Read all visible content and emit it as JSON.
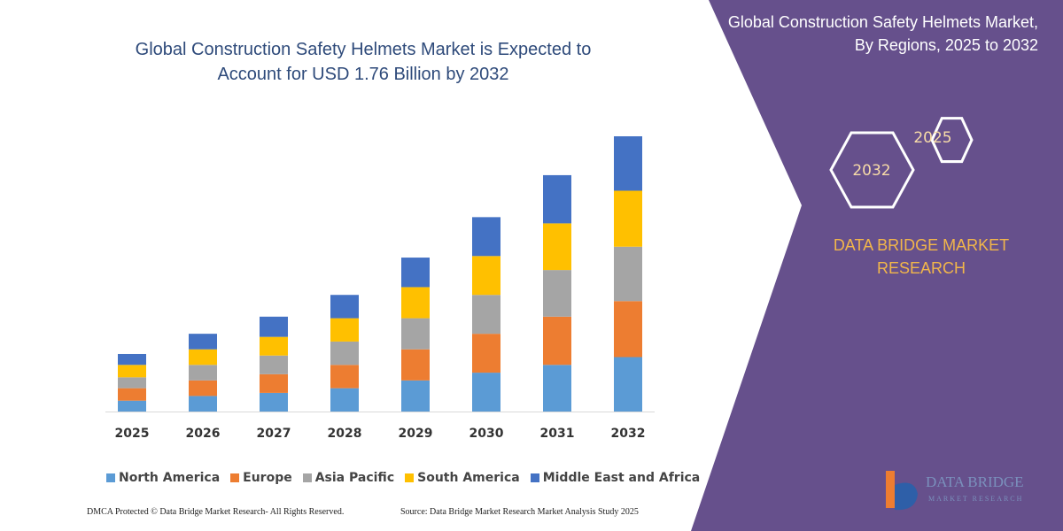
{
  "chart_data": {
    "type": "stacked-bar",
    "title": "Global Construction Safety Helmets Market is Expected to Account for USD 1.76 Billion by 2032",
    "categories": [
      "2025",
      "2026",
      "2027",
      "2028",
      "2029",
      "2030",
      "2031",
      "2032"
    ],
    "series": [
      {
        "name": "North America",
        "color": "#5b9bd5",
        "values": [
          0.07,
          0.1,
          0.12,
          0.15,
          0.2,
          0.25,
          0.3,
          0.35
        ]
      },
      {
        "name": "Europe",
        "color": "#ed7d31",
        "values": [
          0.08,
          0.1,
          0.12,
          0.15,
          0.2,
          0.25,
          0.31,
          0.36
        ]
      },
      {
        "name": "Asia Pacific",
        "color": "#a5a5a5",
        "values": [
          0.07,
          0.1,
          0.12,
          0.15,
          0.2,
          0.25,
          0.3,
          0.35
        ]
      },
      {
        "name": "South America",
        "color": "#ffc000",
        "values": [
          0.08,
          0.1,
          0.12,
          0.15,
          0.2,
          0.25,
          0.3,
          0.36
        ]
      },
      {
        "name": "Middle East and Africa",
        "color": "#4472c4",
        "values": [
          0.07,
          0.1,
          0.13,
          0.15,
          0.19,
          0.25,
          0.31,
          0.35
        ]
      }
    ],
    "legend": "bottom"
  },
  "footer": {
    "copyright": "DMCA Protected © Data Bridge Market Research-  All Rights Reserved.",
    "source": "Source: Data Bridge Market Research  Market Analysis Study 2025"
  },
  "panel": {
    "title": "Global Construction Safety Helmets Market, By Regions, 2025 to 2032",
    "hexagons": [
      "2025",
      "2032"
    ],
    "brand": "DATA BRIDGE MARKET RESEARCH"
  },
  "logo": {
    "name": "DATA BRIDGE",
    "tagline": "MARKET RESEARCH"
  }
}
